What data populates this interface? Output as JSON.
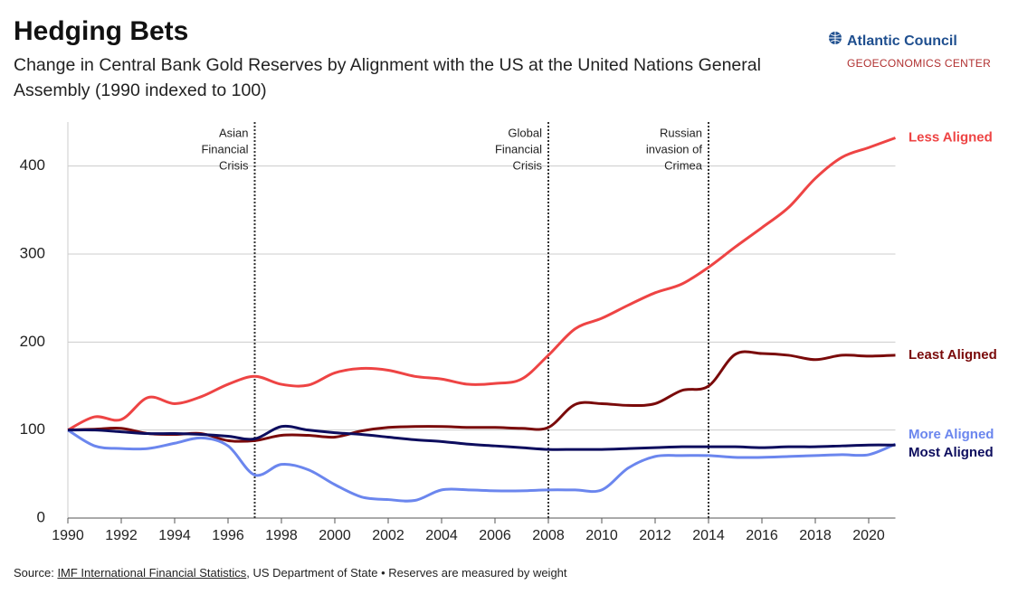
{
  "chart_data": {
    "type": "line",
    "title": "Hedging Bets",
    "subtitle": "Change in Central Bank Gold Reserves by Alignment with the US at the United Nations General Assembly (1990 indexed to 100)",
    "logo": {
      "name": "Atlantic Council",
      "center": "GEOECONOMICS CENTER"
    },
    "source": {
      "label": "Source:",
      "link": "IMF International Financial Statistics",
      "rest": ", US Department of State • Reserves are measured by weight"
    },
    "x": [
      1990,
      1991,
      1992,
      1993,
      1994,
      1995,
      1996,
      1997,
      1998,
      1999,
      2000,
      2001,
      2002,
      2003,
      2004,
      2005,
      2006,
      2007,
      2008,
      2009,
      2010,
      2011,
      2012,
      2013,
      2014,
      2015,
      2016,
      2017,
      2018,
      2019,
      2020,
      2021
    ],
    "xlim": [
      1990,
      2021
    ],
    "xticks": [
      1990,
      1992,
      1994,
      1996,
      1998,
      2000,
      2002,
      2004,
      2006,
      2008,
      2010,
      2012,
      2014,
      2016,
      2018,
      2020
    ],
    "ylim": [
      0,
      450
    ],
    "yticks": [
      0,
      100,
      200,
      300,
      400
    ],
    "grid": true,
    "annotations": [
      {
        "x": 1997,
        "lines": [
          "Asian",
          "Financial",
          "Crisis"
        ]
      },
      {
        "x": 2008,
        "lines": [
          "Global",
          "Financial",
          "Crisis"
        ]
      },
      {
        "x": 2014,
        "lines": [
          "Russian",
          "invasion of",
          "Crimea"
        ]
      }
    ],
    "series": [
      {
        "name": "Less Aligned",
        "color": "#ee4444",
        "values": [
          100,
          115,
          112,
          137,
          130,
          138,
          152,
          161,
          152,
          151,
          165,
          170,
          168,
          161,
          158,
          152,
          153,
          158,
          185,
          215,
          227,
          242,
          256,
          266,
          285,
          308,
          330,
          353,
          386,
          410,
          421,
          432
        ]
      },
      {
        "name": "Least Aligned",
        "color": "#7a0a0a",
        "values": [
          100,
          101,
          102,
          96,
          95,
          96,
          88,
          88,
          94,
          94,
          92,
          99,
          103,
          104,
          104,
          103,
          103,
          102,
          103,
          129,
          130,
          128,
          130,
          145,
          150,
          186,
          187,
          185,
          180,
          185,
          184,
          185
        ]
      },
      {
        "name": "More Aligned",
        "color": "#6b86ee",
        "values": [
          100,
          82,
          79,
          79,
          85,
          91,
          82,
          49,
          61,
          55,
          38,
          24,
          21,
          20,
          32,
          32,
          31,
          31,
          32,
          32,
          32,
          57,
          70,
          71,
          71,
          69,
          69,
          70,
          71,
          72,
          72,
          84
        ]
      },
      {
        "name": "Most Aligned",
        "color": "#0d0d5e",
        "values": [
          100,
          100,
          98,
          96,
          96,
          95,
          93,
          90,
          104,
          100,
          97,
          95,
          92,
          89,
          87,
          84,
          82,
          80,
          78,
          78,
          78,
          79,
          80,
          81,
          81,
          81,
          80,
          81,
          81,
          82,
          83,
          83
        ]
      }
    ]
  }
}
